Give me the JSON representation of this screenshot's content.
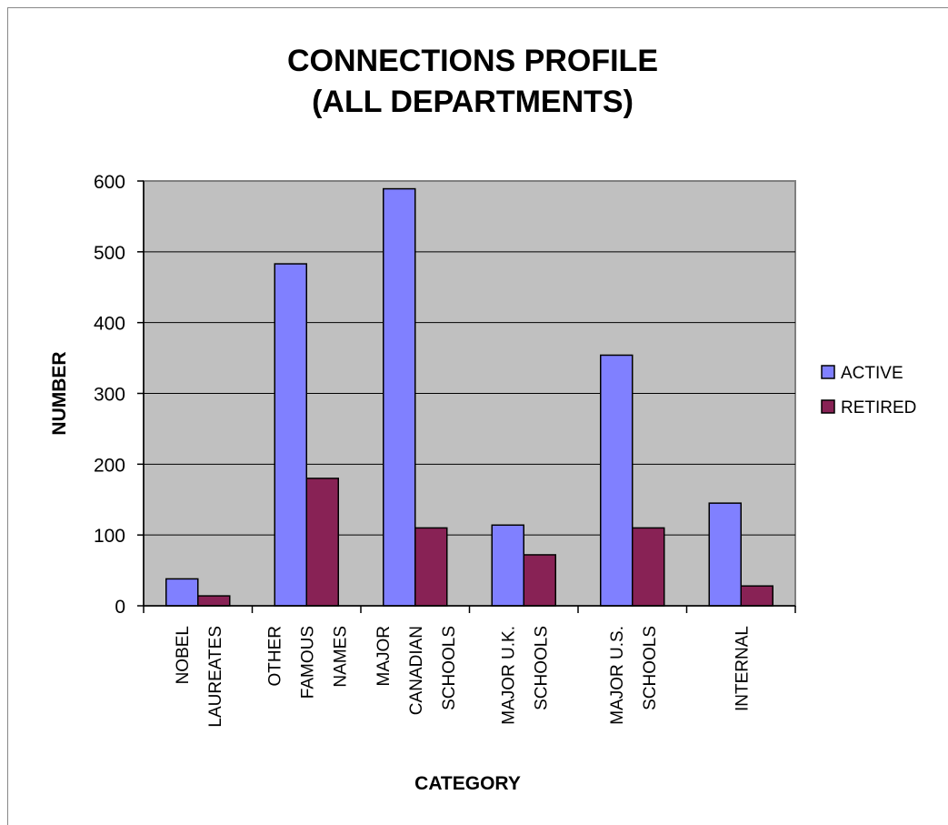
{
  "chart_data": {
    "type": "bar",
    "title": [
      "CONNECTIONS PROFILE",
      "(ALL DEPARTMENTS)"
    ],
    "xlabel": "CATEGORY",
    "ylabel": "NUMBER",
    "ylim": [
      0,
      600
    ],
    "yticks": [
      "0",
      "100",
      "200",
      "300",
      "400",
      "500",
      "600"
    ],
    "categories": [
      [
        "NOBEL",
        "LAUREATES"
      ],
      [
        "OTHER",
        "FAMOUS",
        "NAMES"
      ],
      [
        "MAJOR",
        "CANADIAN",
        "SCHOOLS"
      ],
      [
        "MAJOR U.K.",
        "SCHOOLS"
      ],
      [
        "MAJOR U.S.",
        "SCHOOLS"
      ],
      [
        "INTERNAL"
      ]
    ],
    "series": [
      {
        "name": "ACTIVE",
        "color": "#8080ff",
        "values": [
          38,
          483,
          589,
          114,
          354,
          145
        ]
      },
      {
        "name": "RETIRED",
        "color": "#882255",
        "values": [
          14,
          180,
          110,
          72,
          110,
          28
        ]
      }
    ],
    "plot_background": "#c0c0c0",
    "grid": true,
    "legend_position": "right"
  }
}
